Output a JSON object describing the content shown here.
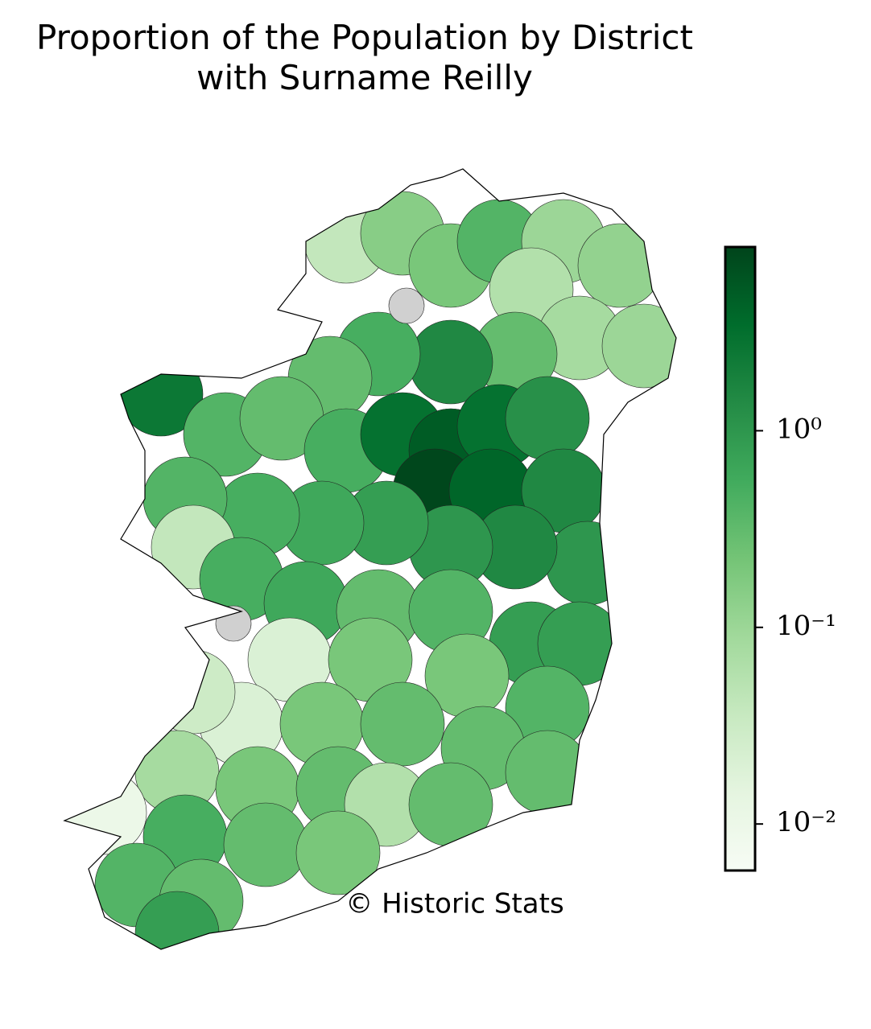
{
  "chart_data": {
    "type": "choropleth",
    "title": "Proportion of the Population by District\nwith Surname Reilly",
    "credit": "© Historic Stats",
    "colormap": [
      "#f7fcf5",
      "#e5f5e0",
      "#c7e9c0",
      "#a1d99b",
      "#74c476",
      "#41ab5d",
      "#238b45",
      "#006d2c",
      "#00441b"
    ],
    "missing_color": "#d0d0d0",
    "log_scale": true,
    "colorbar": {
      "lim": [
        0.0058,
        8.6
      ],
      "ticks": [
        {
          "value": 1,
          "label": "10⁰"
        },
        {
          "value": 0.1,
          "label": "10⁻¹"
        },
        {
          "value": 0.01,
          "label": "10⁻²"
        }
      ]
    },
    "districts": {
      "values": [
        0.04,
        0.15,
        0.2,
        0.4,
        0.1,
        0.12,
        0.06,
        0.08,
        0.1,
        0.3,
        1.5,
        0.5,
        0.3,
        2.5,
        0.4,
        0.3,
        0.5,
        3,
        5,
        3,
        1.2,
        8,
        4,
        1.5,
        1,
        1.5,
        1,
        0.8,
        0.6,
        0.5,
        0.4,
        0.04,
        0.5,
        0.6,
        0.3,
        0.4,
        0.8,
        0.8,
        0.02,
        0.2,
        0.2,
        0.4,
        0.02,
        0.03,
        0.2,
        0.3,
        0.3,
        0.3,
        0.08,
        0.2,
        0.3,
        0.06,
        0.3,
        0.01,
        0.5,
        0.3,
        0.2,
        0.4,
        0.3,
        0.8,
        null,
        null
      ]
    }
  }
}
